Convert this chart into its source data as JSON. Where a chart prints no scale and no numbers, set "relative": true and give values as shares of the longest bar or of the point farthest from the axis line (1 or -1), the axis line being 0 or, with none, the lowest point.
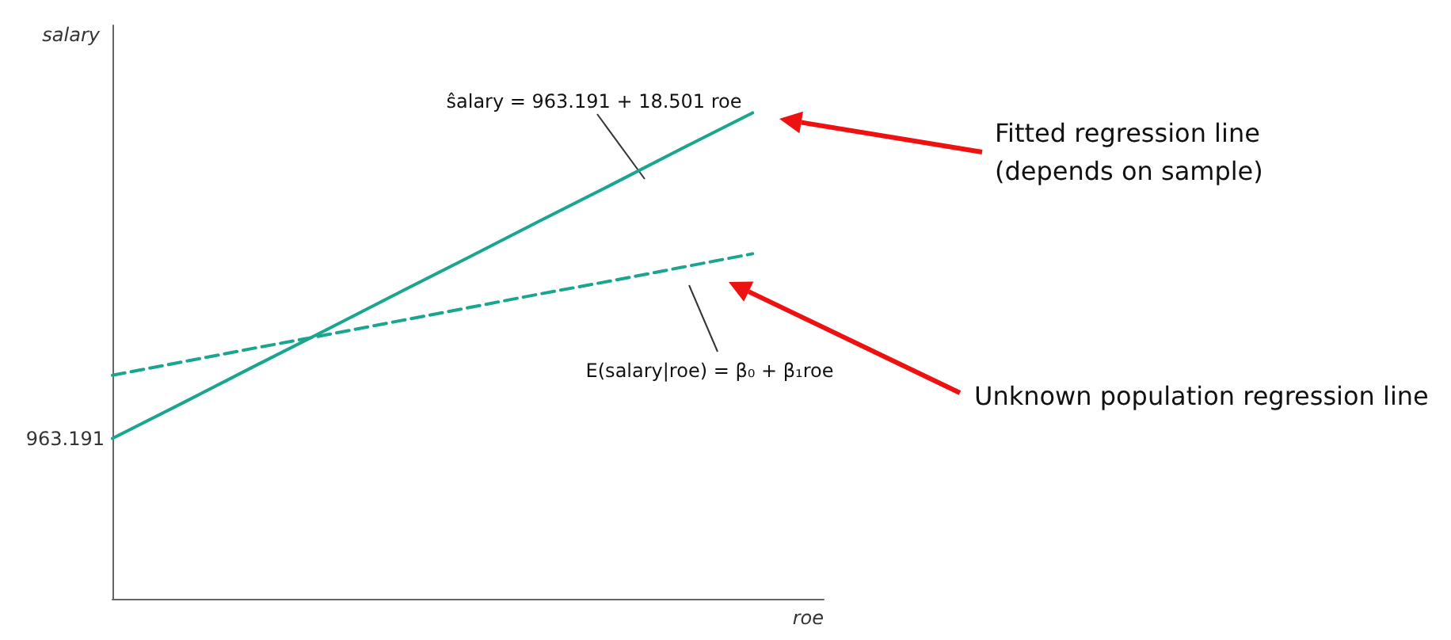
{
  "chart_data": {
    "type": "line",
    "relative": true,
    "xlabel": "roe",
    "ylabel": "salary",
    "categories": [
      null,
      null,
      null,
      null,
      null,
      null,
      null,
      null,
      null,
      null,
      null
    ],
    "series": [
      {
        "color": "#1aa58f",
        "line_style": "solid",
        "values": [
          0.33,
          0.404,
          0.479,
          0.553,
          0.628,
          0.702,
          0.777,
          0.851,
          0.926,
          1.0,
          null
        ]
      },
      {
        "color": "#1aa58f",
        "line_style": "dashed",
        "values": [
          0.46,
          0.488,
          0.516,
          0.543,
          0.571,
          0.599,
          0.627,
          0.654,
          0.682,
          0.71,
          null
        ]
      }
    ],
    "annotations": [
      "963.191",
      "ŝalary = 963.191 + 18.501 roe",
      "E(salary|roe) = β₀ + β₁roe",
      "Fitted regression line\n(depends on sample)",
      "Unknown population regression line"
    ],
    "marker": "none",
    "grid": false
  }
}
